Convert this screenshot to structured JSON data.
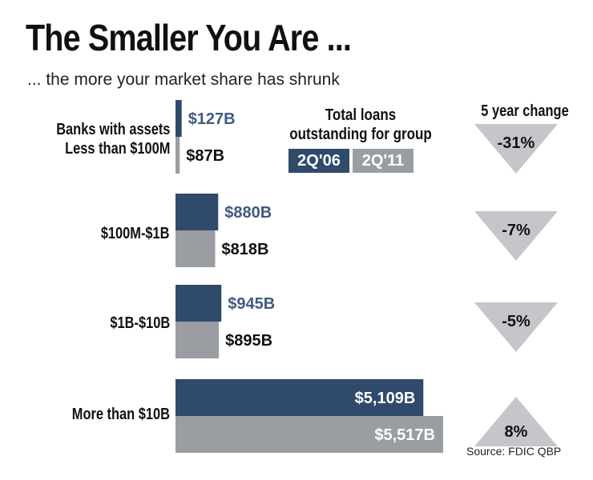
{
  "title": "The Smaller You Are ...",
  "subtitle": "... the more your market share has shrunk",
  "legend": {
    "title_line1": "Total loans",
    "title_line2": "outstanding for group",
    "series_2006": "2Q'06",
    "series_2011": "2Q'11"
  },
  "change_header": "5 year change",
  "source": "Source: FDIC QBP",
  "colors": {
    "navy": "#2f4a6b",
    "gray": "#9a9ea3",
    "navy_text": "#3e5b80"
  },
  "chart_data": {
    "type": "bar",
    "orientation": "horizontal",
    "title": "The Smaller You Are ...",
    "subtitle": "... the more your market share has shrunk",
    "units": "USD billions",
    "categories": [
      {
        "line1": "Banks with assets",
        "line2": "Less than $100M"
      },
      {
        "line1": "$100M-$1B",
        "line2": ""
      },
      {
        "line1": "$1B-$10B",
        "line2": ""
      },
      {
        "line1": "More than $10B",
        "line2": ""
      }
    ],
    "series": [
      {
        "name": "2Q'06",
        "values": [
          127,
          880,
          945,
          5109
        ],
        "labels": [
          "$127B",
          "$880B",
          "$945B",
          "$5,109B"
        ]
      },
      {
        "name": "2Q'11",
        "values": [
          87,
          818,
          895,
          5517
        ],
        "labels": [
          "$87B",
          "$818B",
          "$895B",
          "$5,517B"
        ]
      }
    ],
    "five_year_change": [
      {
        "value": -31,
        "label": "-31%",
        "direction": "down"
      },
      {
        "value": -7,
        "label": "-7%",
        "direction": "down"
      },
      {
        "value": -5,
        "label": "-5%",
        "direction": "down"
      },
      {
        "value": 8,
        "label": "8%",
        "direction": "up"
      }
    ]
  }
}
